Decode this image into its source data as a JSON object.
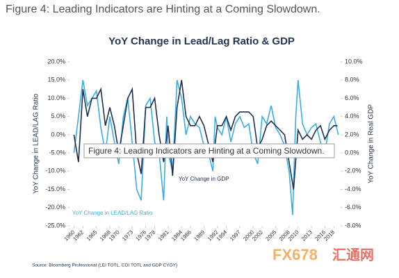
{
  "header": "Figure 4: Leading Indicators are Hinting at a Coming Slowdown.",
  "tooltip": "Figure 4: Leading Indicators are Hinting at a Coming Slowdown.",
  "source": "Source: Bloomberg Professional (LEI TOTL, COI TOTL and GDP CYOY)",
  "watermark": {
    "brand": "FX678",
    "site": "汇通网"
  },
  "chart_data": {
    "type": "line",
    "title": "YoY Change in Lead/Lag Ratio & GDP",
    "ylabel": "YoY Change in LEAD/LAG Ratio",
    "y2label": "YoY Change in Real GDP",
    "annotations": [
      "YoY Change in GDP",
      "YoY Change in LEAD/LAG Ratio"
    ],
    "xlim": [
      1959,
      2019.5
    ],
    "xticks": [
      1960,
      1962,
      1965,
      1968,
      1970,
      1973,
      1976,
      1978,
      1981,
      1984,
      1986,
      1989,
      1992,
      1994,
      1997,
      2000,
      2002,
      2005,
      2008,
      2010,
      2013,
      2016,
      2018
    ],
    "ylim": [
      -25,
      20
    ],
    "yticks": [
      {
        "value": 20,
        "label": "20.0%"
      },
      {
        "value": 15,
        "label": "15.0%"
      },
      {
        "value": 10,
        "label": "10.0%"
      },
      {
        "value": 5,
        "label": "5.0%"
      },
      {
        "value": 0,
        "label": "0.0%"
      },
      {
        "value": -5,
        "label": "-5.0%"
      },
      {
        "value": -10,
        "label": "-10.0%"
      },
      {
        "value": -15,
        "label": "-15.0%"
      },
      {
        "value": -20,
        "label": "-20.0%"
      },
      {
        "value": -25,
        "label": "-25.0%"
      }
    ],
    "y2lim": [
      -8,
      10
    ],
    "y2ticks": [
      {
        "value": 10,
        "label": "10.0%"
      },
      {
        "value": 8,
        "label": "8.0%"
      },
      {
        "value": 6,
        "label": "6.0%"
      },
      {
        "value": 4,
        "label": "4.0%"
      },
      {
        "value": 2,
        "label": "2.0%"
      },
      {
        "value": 0,
        "label": "0.0%"
      },
      {
        "value": -2,
        "label": "-2.0%"
      },
      {
        "value": -4,
        "label": "-4.0%"
      },
      {
        "value": -6,
        "label": "-6.0%"
      },
      {
        "value": -8,
        "label": "-8.0%"
      }
    ],
    "series": [
      {
        "name": "YoY Change in LEAD/LAG Ratio",
        "color": "#3aaee0",
        "x": [
          1960,
          1961,
          1962,
          1963,
          1964,
          1965,
          1966,
          1967,
          1968,
          1969,
          1970,
          1971,
          1972,
          1973,
          1974,
          1975,
          1975.5,
          1976,
          1977,
          1978,
          1979,
          1980,
          1980.7,
          1981,
          1982,
          1983,
          1984,
          1985,
          1986,
          1987,
          1988,
          1989,
          1990,
          1991,
          1991.5,
          1992,
          1993,
          1994,
          1995,
          1996,
          1997,
          1998,
          1999,
          2000,
          2001,
          2002,
          2003,
          2004,
          2005,
          2006,
          2007,
          2008,
          2008.8,
          2009.5,
          2010,
          2011,
          2012,
          2013,
          2014,
          2015,
          2016,
          2017,
          2018,
          2019
        ],
        "values": [
          -5,
          5,
          15,
          8,
          10,
          12,
          2,
          -5,
          5,
          -2,
          -8,
          5,
          10,
          -2,
          -15,
          -18,
          -5,
          8,
          10,
          -2,
          -5,
          -18,
          5,
          -5,
          -10,
          15,
          10,
          0,
          5,
          3,
          2,
          -3,
          -5,
          -10,
          5,
          2,
          0,
          5,
          -2,
          3,
          5,
          2,
          3,
          -5,
          -8,
          5,
          3,
          8,
          2,
          0,
          -3,
          -10,
          -22,
          5,
          15,
          3,
          0,
          2,
          3,
          -2,
          -5,
          3,
          5,
          0
        ]
      },
      {
        "name": "YoY Change in GDP",
        "color": "#1f2d4e",
        "axis": "y2",
        "x": [
          1960,
          1961,
          1962,
          1963,
          1964,
          1965,
          1966,
          1967,
          1968,
          1969,
          1970,
          1971,
          1972,
          1973,
          1974,
          1975,
          1976,
          1977,
          1978,
          1979,
          1980,
          1981,
          1982,
          1983,
          1984,
          1985,
          1986,
          1987,
          1988,
          1989,
          1990,
          1991,
          1992,
          1993,
          1994,
          1995,
          1996,
          1997,
          1998,
          1999,
          2000,
          2001,
          2002,
          2003,
          2004,
          2005,
          2006,
          2007,
          2008,
          2009,
          2010,
          2011,
          2012,
          2013,
          2014,
          2015,
          2016,
          2017,
          2018,
          2018.8
        ],
        "values": [
          2,
          -1,
          7,
          4,
          6,
          6,
          7,
          3,
          5,
          3,
          0,
          3,
          6,
          7,
          0,
          -2.3,
          5,
          5,
          6,
          2,
          -1,
          3,
          -2.5,
          5,
          8,
          4,
          3,
          3,
          4,
          3,
          1,
          -1,
          3,
          3,
          4,
          2.5,
          4,
          4.5,
          4.5,
          4.5,
          4,
          0.5,
          1.5,
          3,
          3.5,
          3,
          2.5,
          2,
          -1,
          -4,
          2.5,
          1.5,
          2,
          1.5,
          2.5,
          3,
          1.5,
          2.5,
          3,
          3
        ]
      }
    ]
  }
}
